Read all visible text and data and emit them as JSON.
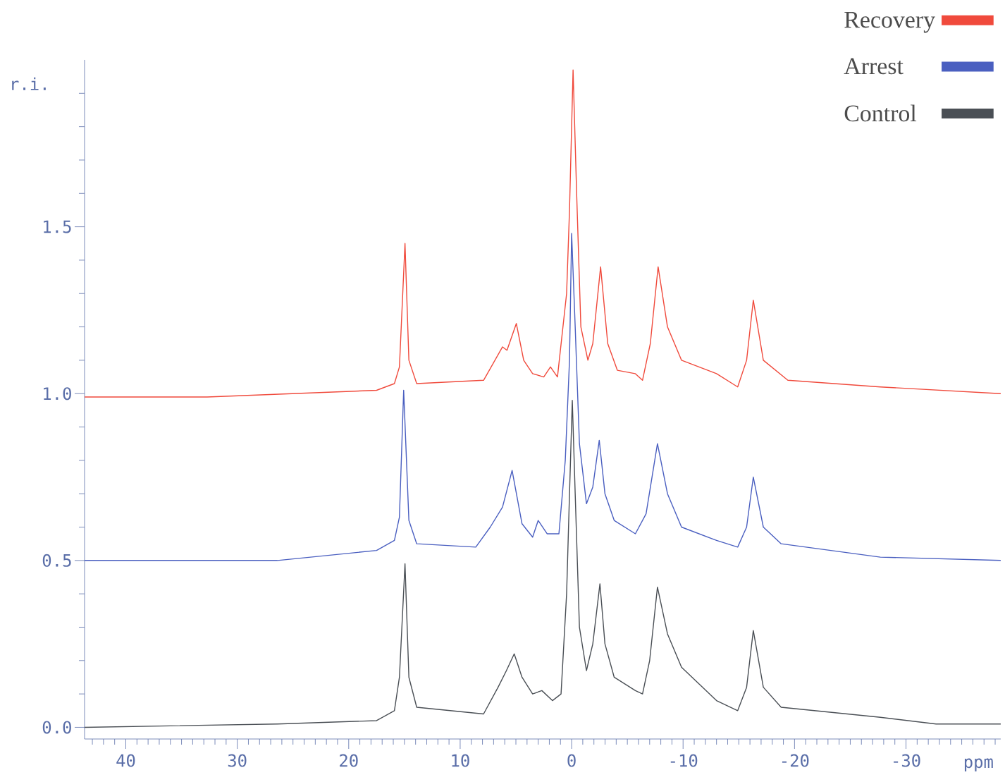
{
  "chart_data": {
    "type": "line",
    "xlabel": "ppm",
    "ylabel": "r.i.",
    "xlim": [
      43.7,
      -38.5
    ],
    "ylim": [
      -0.035,
      2.0
    ],
    "xticks": [
      {
        "value": 40,
        "label": "40"
      },
      {
        "value": 30,
        "label": "30"
      },
      {
        "value": 20,
        "label": "20"
      },
      {
        "value": 10,
        "label": "10"
      },
      {
        "value": 0,
        "label": "0"
      },
      {
        "value": -10,
        "label": "-10"
      },
      {
        "value": -20,
        "label": "-20"
      },
      {
        "value": -30,
        "label": "-30"
      }
    ],
    "yticks": [
      {
        "value": 0,
        "label": "0.0"
      },
      {
        "value": 0.5,
        "label": "0.5"
      },
      {
        "value": 1.0,
        "label": "1.0"
      },
      {
        "value": 1.5,
        "label": "1.5"
      }
    ],
    "legend": "top right",
    "grid": false,
    "marker": "none",
    "line_style": "solid",
    "series": [
      {
        "name": "Recovery",
        "color": "#f04a3c",
        "x": [
          43.7,
          32.7,
          17.5,
          15.9,
          15.45,
          14.95,
          14.6,
          13.9,
          7.9,
          6.2,
          5.8,
          4.96,
          4.3,
          3.5,
          2.5,
          1.9,
          1.27,
          0.45,
          0.19,
          -0.13,
          -0.45,
          -0.83,
          -1.46,
          -1.9,
          -2.6,
          -3.24,
          -4.1,
          -5.7,
          -6.36,
          -7.06,
          -7.76,
          -8.6,
          -9.86,
          -13,
          -14.9,
          -15.7,
          -16.3,
          -17.2,
          -19.4,
          -27.7,
          -38.5
        ],
        "values": [
          0.99,
          0.99,
          1.01,
          1.03,
          1.08,
          1.45,
          1.1,
          1.03,
          1.04,
          1.14,
          1.13,
          1.21,
          1.1,
          1.06,
          1.05,
          1.08,
          1.05,
          1.3,
          1.55,
          1.97,
          1.6,
          1.2,
          1.1,
          1.15,
          1.38,
          1.15,
          1.07,
          1.06,
          1.04,
          1.15,
          1.38,
          1.2,
          1.1,
          1.06,
          1.02,
          1.1,
          1.28,
          1.1,
          1.04,
          1.02,
          1.0
        ]
      },
      {
        "name": "Arrest",
        "color": "#4a5fc0",
        "x": [
          43.7,
          26.4,
          17.5,
          15.9,
          15.45,
          15.07,
          14.6,
          13.9,
          8.6,
          7.3,
          6.2,
          5.34,
          4.45,
          3.5,
          3.0,
          2.2,
          1.14,
          0.57,
          0.19,
          0,
          -0.32,
          -0.7,
          -1.33,
          -1.9,
          -2.48,
          -2.99,
          -3.82,
          -5.72,
          -6.68,
          -7.7,
          -8.6,
          -9.86,
          -13,
          -14.9,
          -15.7,
          -16.3,
          -17.2,
          -18.8,
          -27.7,
          -38.5
        ],
        "values": [
          0.5,
          0.5,
          0.53,
          0.56,
          0.63,
          1.01,
          0.62,
          0.55,
          0.54,
          0.6,
          0.66,
          0.77,
          0.61,
          0.57,
          0.62,
          0.58,
          0.58,
          0.8,
          1.1,
          1.48,
          1.2,
          0.85,
          0.67,
          0.72,
          0.86,
          0.7,
          0.62,
          0.58,
          0.64,
          0.85,
          0.7,
          0.6,
          0.56,
          0.54,
          0.6,
          0.75,
          0.6,
          0.55,
          0.51,
          0.5
        ]
      },
      {
        "name": "Control",
        "color": "#4a4f55",
        "x": [
          43.7,
          26.4,
          17.5,
          15.9,
          15.45,
          14.95,
          14.6,
          13.9,
          7.9,
          6.6,
          5.85,
          5.15,
          4.45,
          3.5,
          2.67,
          1.72,
          0.95,
          0.45,
          0.19,
          -0.06,
          -0.32,
          -0.7,
          -1.33,
          -1.9,
          -2.54,
          -2.99,
          -3.82,
          -5.72,
          -6.36,
          -7.0,
          -7.7,
          -8.6,
          -9.86,
          -13,
          -14.9,
          -15.7,
          -16.3,
          -17.2,
          -18.8,
          -27.7,
          -32.7,
          -38.5
        ],
        "values": [
          0.0,
          0.01,
          0.02,
          0.05,
          0.15,
          0.49,
          0.15,
          0.06,
          0.04,
          0.12,
          0.17,
          0.22,
          0.15,
          0.1,
          0.11,
          0.08,
          0.1,
          0.4,
          0.7,
          0.98,
          0.7,
          0.3,
          0.17,
          0.25,
          0.43,
          0.25,
          0.15,
          0.11,
          0.1,
          0.2,
          0.42,
          0.28,
          0.18,
          0.08,
          0.05,
          0.12,
          0.29,
          0.12,
          0.06,
          0.03,
          0.01,
          0.01
        ]
      }
    ]
  }
}
